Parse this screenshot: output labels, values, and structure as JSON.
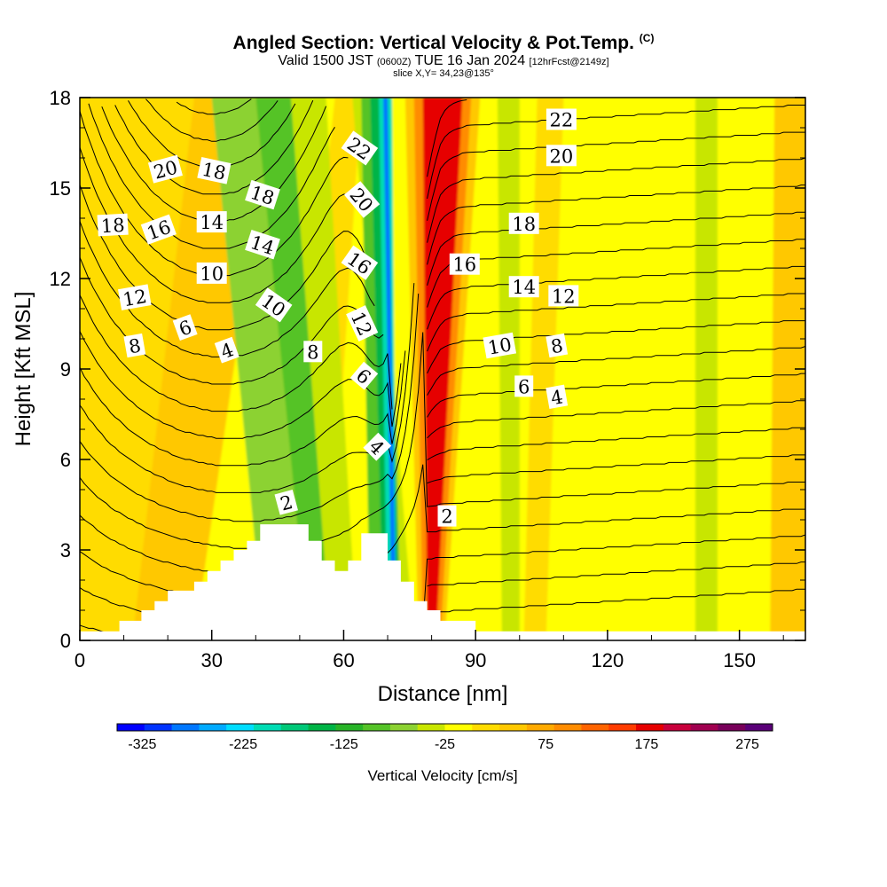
{
  "header": {
    "title": "Angled Section: Vertical Velocity & Pot.Temp.",
    "title_tag": "(C)",
    "subtitle_main_1": "Valid 1500 JST",
    "subtitle_small_1": "(0600Z)",
    "subtitle_main_2": "TUE 16 Jan 2024",
    "subtitle_small_2": "[12hrFcst@2149z]",
    "slice": "slice X,Y= 34,23@135°"
  },
  "chart_data": {
    "type": "heatmap",
    "xlabel": "Distance [nm]",
    "ylabel": "Height [Kft MSL]",
    "xlim": [
      0,
      165
    ],
    "ylim": [
      0,
      18
    ],
    "x_ticks": [
      0,
      30,
      60,
      90,
      120,
      150
    ],
    "y_ticks": [
      0,
      3,
      6,
      9,
      12,
      15,
      18
    ],
    "colorbar": {
      "label": "Vertical Velocity [cm/s]",
      "tick_labels": [
        "-325",
        "-225",
        "-125",
        "-25",
        "75",
        "175",
        "275"
      ],
      "tick_values": [
        -325,
        -225,
        -125,
        -25,
        75,
        175,
        275
      ],
      "range": [
        -350,
        300
      ],
      "colors": [
        "#0000ff",
        "#0033ff",
        "#0077ff",
        "#00aaff",
        "#00ddff",
        "#00dcb4",
        "#00c878",
        "#00b446",
        "#28b428",
        "#55c328",
        "#8cd232",
        "#c8e600",
        "#ffff00",
        "#ffdc00",
        "#ffc800",
        "#ffaa00",
        "#ff8c00",
        "#ff6400",
        "#ff3c00",
        "#e60000",
        "#c8003c",
        "#a00050",
        "#78005a",
        "#5a0078"
      ]
    },
    "velocity_bands": [
      {
        "x_top": [
          -2,
          165
        ],
        "x_bottom": [
          -2,
          165
        ],
        "value": -25
      },
      {
        "x_top": [
          38,
          80
        ],
        "x_bottom": [
          60,
          90
        ],
        "value": -5
      },
      {
        "x_top": [
          -2,
          26
        ],
        "x_bottom": [
          -2,
          38
        ],
        "value": 20
      },
      {
        "x_top": [
          26,
          44
        ],
        "x_bottom": [
          12,
          28
        ],
        "value": 30
      },
      {
        "x_top": [
          44,
          58
        ],
        "x_bottom": [
          26,
          45
        ],
        "value": -25
      },
      {
        "x_top": [
          58,
          64
        ],
        "x_bottom": [
          45,
          56
        ],
        "value": 20
      },
      {
        "x_top": [
          30,
          40
        ],
        "x_bottom": [
          42,
          52
        ],
        "value": -60
      },
      {
        "x_top": [
          40,
          48
        ],
        "x_bottom": [
          52,
          62
        ],
        "value": -100
      },
      {
        "x_top": [
          48,
          56
        ],
        "x_bottom": [
          57,
          63
        ],
        "value": -30
      },
      {
        "x_top": [
          62,
          66
        ],
        "x_bottom": [
          72,
          76
        ],
        "value": -30
      },
      {
        "x_top": [
          64,
          70
        ],
        "x_bottom": [
          66,
          72
        ],
        "value": -90
      },
      {
        "x_top": [
          66,
          70
        ],
        "x_bottom": [
          69,
          73
        ],
        "value": -140
      },
      {
        "x_top": [
          68,
          71
        ],
        "x_bottom": [
          70,
          72
        ],
        "value": -200
      },
      {
        "x_top": [
          69,
          70
        ],
        "x_bottom": [
          71,
          72
        ],
        "value": -280
      },
      {
        "x_top": [
          74,
          91
        ],
        "x_bottom": [
          77,
          83
        ],
        "value": 50
      },
      {
        "x_top": [
          76,
          89
        ],
        "x_bottom": [
          78,
          82
        ],
        "value": 110
      },
      {
        "x_top": [
          78,
          87
        ],
        "x_bottom": [
          79,
          81
        ],
        "value": 170
      },
      {
        "x_top": [
          95,
          100
        ],
        "x_bottom": [
          96,
          100
        ],
        "value": -50
      },
      {
        "x_top": [
          104,
          110
        ],
        "x_bottom": [
          101,
          106
        ],
        "value": 20
      },
      {
        "x_top": [
          140,
          145
        ],
        "x_bottom": [
          140,
          145
        ],
        "value": -45
      },
      {
        "x_top": [
          158,
          166
        ],
        "x_bottom": [
          157,
          166
        ],
        "value": 30
      }
    ],
    "terrain": [
      [
        0,
        0.3
      ],
      [
        9,
        0.3
      ],
      [
        9,
        0.65
      ],
      [
        14,
        0.65
      ],
      [
        14,
        1.0
      ],
      [
        17,
        1.0
      ],
      [
        17,
        1.3
      ],
      [
        20,
        1.3
      ],
      [
        20,
        1.65
      ],
      [
        26,
        1.65
      ],
      [
        26,
        1.95
      ],
      [
        29,
        1.95
      ],
      [
        29,
        2.3
      ],
      [
        32,
        2.3
      ],
      [
        32,
        2.65
      ],
      [
        35,
        2.65
      ],
      [
        35,
        3.0
      ],
      [
        38,
        3.0
      ],
      [
        38,
        3.3
      ],
      [
        41,
        3.3
      ],
      [
        41,
        3.85
      ],
      [
        52,
        3.85
      ],
      [
        52,
        3.3
      ],
      [
        55,
        3.3
      ],
      [
        55,
        2.65
      ],
      [
        58,
        2.65
      ],
      [
        58,
        2.3
      ],
      [
        61,
        2.3
      ],
      [
        61,
        2.65
      ],
      [
        64,
        2.65
      ],
      [
        64,
        3.55
      ],
      [
        70,
        3.55
      ],
      [
        70,
        2.65
      ],
      [
        73,
        2.65
      ],
      [
        73,
        1.95
      ],
      [
        76,
        1.95
      ],
      [
        76,
        1.3
      ],
      [
        79,
        1.3
      ],
      [
        79,
        1.0
      ],
      [
        82,
        1.0
      ],
      [
        82,
        0.65
      ],
      [
        90,
        0.65
      ],
      [
        90,
        0.3
      ],
      [
        165,
        0.3
      ]
    ],
    "theta_contours": {
      "interval": 1,
      "levels": [
        3,
        4,
        5,
        6,
        7,
        8,
        9,
        10,
        11,
        12,
        13,
        14,
        15,
        16,
        17,
        18,
        19,
        20,
        21,
        22,
        23
      ],
      "labels": [
        {
          "text": "20",
          "x": 19.5,
          "y": 15.6,
          "angle": -15
        },
        {
          "text": "18",
          "x": 30.5,
          "y": 15.55,
          "angle": 12
        },
        {
          "text": "18",
          "x": 41.5,
          "y": 14.75,
          "angle": 18
        },
        {
          "text": "22",
          "x": 63.5,
          "y": 16.3,
          "angle": 35
        },
        {
          "text": "22",
          "x": 109.5,
          "y": 17.25,
          "angle": 0
        },
        {
          "text": "20",
          "x": 109.5,
          "y": 16.05,
          "angle": 0
        },
        {
          "text": "18",
          "x": 7.5,
          "y": 13.75,
          "angle": -3
        },
        {
          "text": "16",
          "x": 18,
          "y": 13.6,
          "angle": -20
        },
        {
          "text": "14",
          "x": 30,
          "y": 13.85,
          "angle": 0
        },
        {
          "text": "14",
          "x": 41.5,
          "y": 13.1,
          "angle": 18
        },
        {
          "text": "20",
          "x": 64,
          "y": 14.6,
          "angle": 50
        },
        {
          "text": "18",
          "x": 101,
          "y": 13.8,
          "angle": 0
        },
        {
          "text": "16",
          "x": 63.5,
          "y": 12.5,
          "angle": 35
        },
        {
          "text": "16",
          "x": 87.5,
          "y": 12.45,
          "angle": 0
        },
        {
          "text": "10",
          "x": 30,
          "y": 12.15,
          "angle": 0
        },
        {
          "text": "14",
          "x": 101,
          "y": 11.7,
          "angle": 0
        },
        {
          "text": "12",
          "x": 12.5,
          "y": 11.35,
          "angle": -10
        },
        {
          "text": "10",
          "x": 44,
          "y": 11.1,
          "angle": 35
        },
        {
          "text": "12",
          "x": 110,
          "y": 11.4,
          "angle": 0
        },
        {
          "text": "12",
          "x": 64,
          "y": 10.5,
          "angle": 65
        },
        {
          "text": "8",
          "x": 12.5,
          "y": 9.75,
          "angle": -10
        },
        {
          "text": "6",
          "x": 24,
          "y": 10.35,
          "angle": -20
        },
        {
          "text": "4",
          "x": 33.5,
          "y": 9.6,
          "angle": -20
        },
        {
          "text": "8",
          "x": 53,
          "y": 9.55,
          "angle": 0
        },
        {
          "text": "10",
          "x": 95.5,
          "y": 9.75,
          "angle": -10
        },
        {
          "text": "8",
          "x": 108.5,
          "y": 9.75,
          "angle": -10
        },
        {
          "text": "6",
          "x": 64.5,
          "y": 8.75,
          "angle": 40
        },
        {
          "text": "6",
          "x": 101,
          "y": 8.4,
          "angle": 0
        },
        {
          "text": "4",
          "x": 108.5,
          "y": 8.05,
          "angle": -10
        },
        {
          "text": "4",
          "x": 67.5,
          "y": 6.4,
          "angle": 45
        },
        {
          "text": "2",
          "x": 47,
          "y": 4.55,
          "angle": -15
        },
        {
          "text": "2",
          "x": 83.5,
          "y": 4.1,
          "angle": 0
        }
      ]
    }
  }
}
